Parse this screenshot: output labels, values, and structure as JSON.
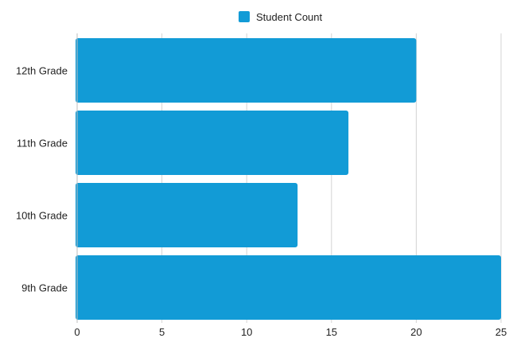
{
  "chart_data": {
    "type": "bar",
    "orientation": "horizontal",
    "categories": [
      "12th Grade",
      "11th Grade",
      "10th Grade",
      "9th Grade"
    ],
    "series": [
      {
        "name": "Student Count",
        "values": [
          20,
          16,
          13,
          25
        ],
        "color": "#129BD6"
      }
    ],
    "xlim": [
      0,
      25
    ],
    "x_ticks": [
      0,
      5,
      10,
      15,
      20,
      25
    ],
    "grid": "vertical",
    "legend_position": "top-center"
  }
}
